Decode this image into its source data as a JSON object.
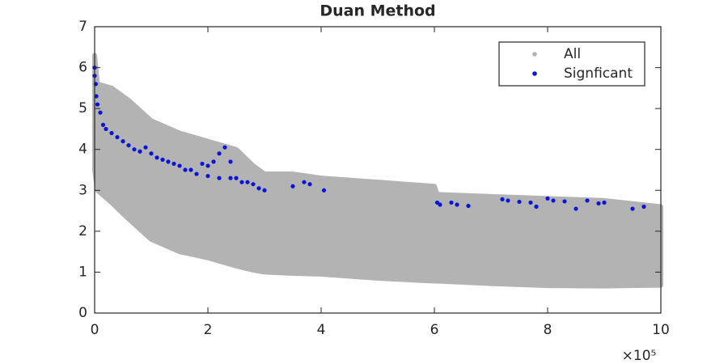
{
  "chart_data": {
    "type": "scatter",
    "title": "Duan Method",
    "x_scale_label": "×10⁵",
    "xlim": [
      0,
      10
    ],
    "xticks": [
      0,
      2,
      4,
      6,
      8,
      10
    ],
    "ylim": [
      0,
      7
    ],
    "yticks": [
      0,
      1,
      2,
      3,
      4,
      5,
      6,
      7
    ],
    "legend": "top-right",
    "series": [
      {
        "name": "All",
        "color": "#b3b3b3",
        "x": [
          0,
          0.05,
          0.3,
          0.6,
          1,
          1.5,
          2,
          2.5,
          2.8,
          3,
          3.5,
          4,
          5,
          6,
          6.05,
          7,
          8,
          9,
          10
        ],
        "upper": [
          6.3,
          5.6,
          5.5,
          5.2,
          4.7,
          4.4,
          4.2,
          4.0,
          3.6,
          3.4,
          3.4,
          3.3,
          3.2,
          3.1,
          2.9,
          2.85,
          2.8,
          2.75,
          2.6
        ],
        "lower": [
          3.5,
          3.0,
          2.7,
          2.3,
          1.8,
          1.5,
          1.35,
          1.15,
          1.05,
          1.0,
          0.97,
          0.95,
          0.85,
          0.78,
          0.78,
          0.72,
          0.67,
          0.66,
          0.68
        ]
      },
      {
        "name": "Signficant",
        "color": "#0a14d8",
        "x": [
          0,
          0,
          0.02,
          0.03,
          0.05,
          0.1,
          0.15,
          0.2,
          0.3,
          0.4,
          0.5,
          0.6,
          0.7,
          0.8,
          0.9,
          1.0,
          1.1,
          1.2,
          1.3,
          1.4,
          1.5,
          1.6,
          1.7,
          1.8,
          1.9,
          2.0,
          2.1,
          2.2,
          2.3,
          2.4,
          2.0,
          2.2,
          2.4,
          2.5,
          2.6,
          2.7,
          2.8,
          2.9,
          3.0,
          3.5,
          3.7,
          3.8,
          4.05,
          6.05,
          6.1,
          6.3,
          6.4,
          6.6,
          7.2,
          7.3,
          7.5,
          7.7,
          7.8,
          8.0,
          8.1,
          8.3,
          8.5,
          8.7,
          8.9,
          9.0,
          9.5,
          9.7
        ],
        "values": [
          6.0,
          5.8,
          5.6,
          5.3,
          5.1,
          4.9,
          4.6,
          4.5,
          4.4,
          4.3,
          4.2,
          4.1,
          4.0,
          3.95,
          4.05,
          3.9,
          3.8,
          3.75,
          3.7,
          3.65,
          3.6,
          3.5,
          3.5,
          3.4,
          3.65,
          3.6,
          3.7,
          3.9,
          4.05,
          3.7,
          3.35,
          3.3,
          3.3,
          3.3,
          3.2,
          3.2,
          3.15,
          3.05,
          3.0,
          3.1,
          3.2,
          3.15,
          3.0,
          2.7,
          2.65,
          2.7,
          2.65,
          2.62,
          2.78,
          2.75,
          2.72,
          2.7,
          2.6,
          2.8,
          2.75,
          2.73,
          2.55,
          2.75,
          2.68,
          2.7,
          2.55,
          2.6
        ]
      }
    ]
  }
}
